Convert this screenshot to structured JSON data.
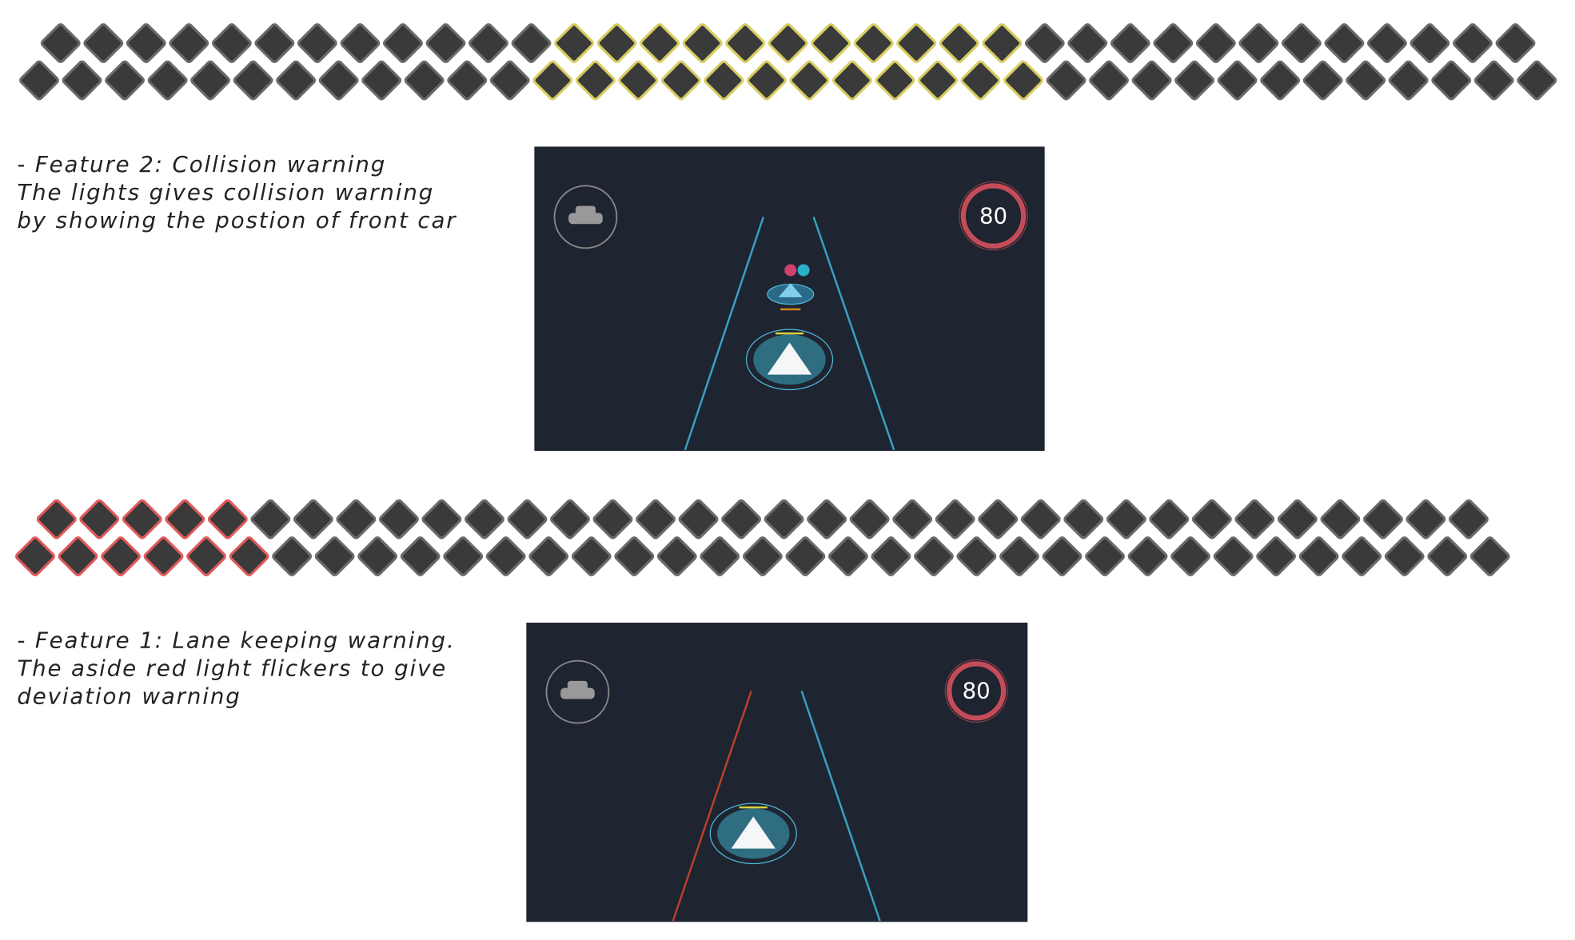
{
  "sections": [
    {
      "caption": [
        "- Feature 2: Collision warning",
        "The lights gives collision warning",
        "by showing the postion of front car"
      ],
      "display": {
        "speed_limit": 80
      }
    },
    {
      "caption": [
        "- Feature 1: Lane keeping warning.",
        "The aside red light flickers to give",
        "deviation warning"
      ],
      "display": {
        "speed_limit": 80
      }
    }
  ]
}
